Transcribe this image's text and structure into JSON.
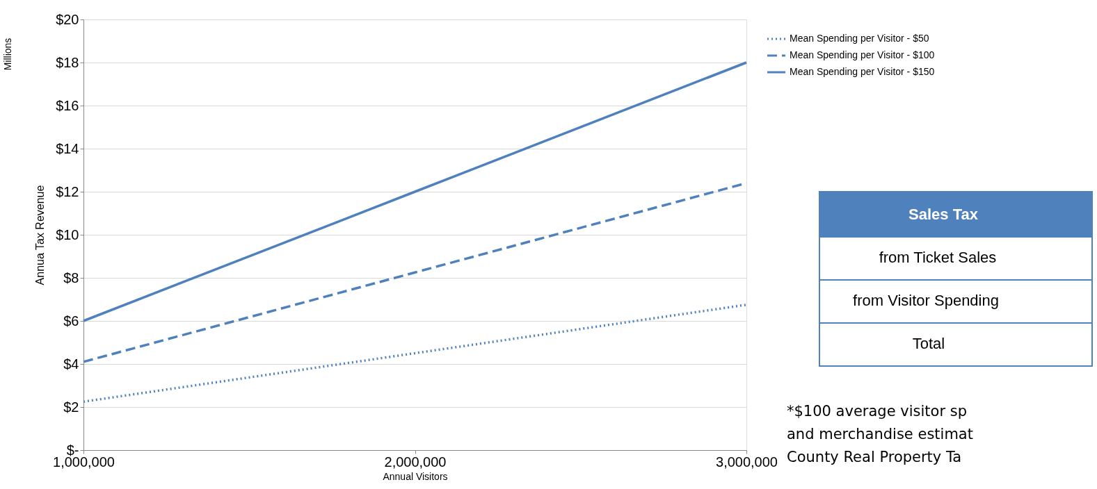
{
  "chart_data": {
    "type": "line",
    "xlabel": "Annual Visitors",
    "ylabel": "Annua Tax Revenue",
    "x": [
      1000000,
      2000000,
      3000000
    ],
    "series": [
      {
        "name": "Mean Spending per Visitor - $50",
        "color": "#4f81bd",
        "values": [
          2.25,
          4.5,
          6.75
        ],
        "line_style": "dotted"
      },
      {
        "name": "Mean Spending per Visitor - $100",
        "color": "#4f81bd",
        "values": [
          4.1,
          8.25,
          12.4
        ],
        "line_style": "dashed"
      },
      {
        "name": "Mean Spending per Visitor - $150",
        "color": "#4f81bd",
        "values": [
          6,
          12,
          18
        ],
        "line_style": "solid"
      }
    ],
    "xlim": [
      1000000,
      3000000
    ],
    "xticks": [
      {
        "value": 1000000,
        "label": "1,000,000"
      },
      {
        "value": 2000000,
        "label": "2,000,000"
      },
      {
        "value": 3000000,
        "label": "3,000,000"
      }
    ],
    "ylim": [
      0,
      20
    ],
    "yticks": [
      {
        "value": 0,
        "label": "$-"
      },
      {
        "value": 2,
        "label": "$2"
      },
      {
        "value": 4,
        "label": "$4"
      },
      {
        "value": 6,
        "label": "$6"
      },
      {
        "value": 8,
        "label": "$8"
      },
      {
        "value": 10,
        "label": "$10"
      },
      {
        "value": 12,
        "label": "$12"
      },
      {
        "value": 14,
        "label": "$14"
      },
      {
        "value": 16,
        "label": "$16"
      },
      {
        "value": 18,
        "label": "$18"
      },
      {
        "value": 20,
        "label": "$20"
      }
    ],
    "grid": "y",
    "legend": "top right",
    "annotations": [
      "Millions",
      "Sales Tax",
      "from Ticket Sales",
      "from Visitor Spending",
      "Total",
      "*$100 average visitor sp",
      "and merchandise estimat",
      "County  Real Property Ta"
    ]
  }
}
